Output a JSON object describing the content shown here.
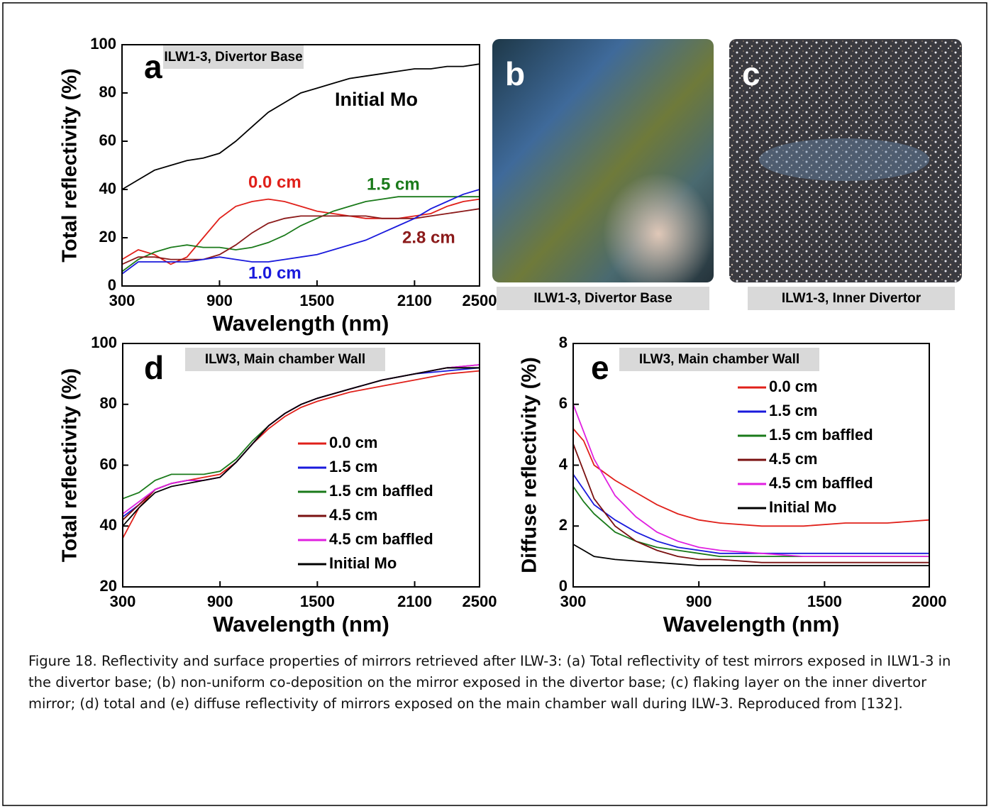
{
  "chart_data": [
    {
      "type": "line",
      "panel": "a",
      "tag": "ILW1-3, Divertor Base",
      "xlabel": "Wavelength (nm)",
      "ylabel": "Total reflectivity (%)",
      "xlim": [
        300,
        2500
      ],
      "xticks": [
        300,
        900,
        1500,
        2100,
        2500
      ],
      "ylim": [
        0,
        100
      ],
      "yticks": [
        0,
        20,
        40,
        60,
        80,
        100
      ],
      "legend": false,
      "x": [
        300,
        400,
        500,
        600,
        700,
        800,
        900,
        1000,
        1100,
        1200,
        1300,
        1400,
        1500,
        1600,
        1700,
        1800,
        1900,
        2000,
        2100,
        2200,
        2300,
        2400,
        2500
      ],
      "series": [
        {
          "name": "Initial Mo",
          "color": "#000000",
          "values": [
            40,
            44,
            48,
            50,
            52,
            53,
            55,
            60,
            66,
            72,
            76,
            80,
            82,
            84,
            86,
            87,
            88,
            89,
            90,
            90,
            91,
            91,
            92
          ]
        },
        {
          "name": "0.0 cm",
          "color": "#e0201a",
          "values": [
            11,
            15,
            13,
            9,
            12,
            20,
            28,
            33,
            35,
            36,
            35,
            33,
            31,
            30,
            29,
            28,
            28,
            28,
            29,
            30,
            33,
            35,
            36
          ]
        },
        {
          "name": "1.5 cm",
          "color": "#1a7a1a",
          "values": [
            6,
            11,
            14,
            16,
            17,
            16,
            16,
            15,
            16,
            18,
            21,
            25,
            28,
            31,
            33,
            35,
            36,
            37,
            37,
            37,
            37,
            37,
            37
          ]
        },
        {
          "name": "2.8 cm",
          "color": "#8b1a1a",
          "values": [
            9,
            12,
            12,
            11,
            11,
            11,
            13,
            17,
            22,
            26,
            28,
            29,
            29,
            29,
            29,
            29,
            28,
            28,
            28,
            29,
            30,
            31,
            32
          ]
        },
        {
          "name": "1.0 cm",
          "color": "#1a1adc",
          "values": [
            5,
            10,
            10,
            10,
            10,
            11,
            12,
            11,
            10,
            10,
            11,
            12,
            13,
            15,
            17,
            19,
            22,
            25,
            28,
            32,
            35,
            38,
            40
          ]
        }
      ]
    },
    {
      "type": "line",
      "panel": "d",
      "tag": "ILW3, Main chamber Wall",
      "xlabel": "Wavelength (nm)",
      "ylabel": "Total reflectivity (%)",
      "xlim": [
        300,
        2500
      ],
      "xticks": [
        300,
        900,
        1500,
        2100,
        2500
      ],
      "ylim": [
        20,
        100
      ],
      "yticks": [
        20,
        40,
        60,
        80,
        100
      ],
      "legend": true,
      "x": [
        300,
        400,
        500,
        600,
        700,
        800,
        900,
        1000,
        1100,
        1200,
        1300,
        1400,
        1500,
        1700,
        1900,
        2100,
        2300,
        2500
      ],
      "series": [
        {
          "name": "0.0 cm",
          "color": "#e0201a",
          "values": [
            36,
            46,
            52,
            54,
            55,
            56,
            57,
            61,
            67,
            72,
            76,
            79,
            81,
            84,
            86,
            88,
            90,
            91
          ]
        },
        {
          "name": "1.5 cm",
          "color": "#1a1adc",
          "values": [
            43,
            47,
            52,
            54,
            55,
            55,
            56,
            61,
            67,
            73,
            77,
            80,
            82,
            85,
            88,
            90,
            91,
            92
          ]
        },
        {
          "name": "1.5 cm baffled",
          "color": "#1a7a1a",
          "values": [
            49,
            51,
            55,
            57,
            57,
            57,
            58,
            62,
            68,
            73,
            77,
            80,
            82,
            85,
            88,
            90,
            92,
            92
          ]
        },
        {
          "name": "4.5 cm",
          "color": "#7a1010",
          "values": [
            42,
            47,
            52,
            54,
            55,
            55,
            56,
            61,
            67,
            73,
            77,
            80,
            82,
            85,
            88,
            90,
            92,
            93
          ]
        },
        {
          "name": "4.5 cm baffled",
          "color": "#e020e0",
          "values": [
            44,
            48,
            52,
            54,
            55,
            55,
            56,
            61,
            67,
            73,
            77,
            80,
            82,
            85,
            88,
            90,
            92,
            93
          ]
        },
        {
          "name": "Initial Mo",
          "color": "#000000",
          "values": [
            40,
            46,
            51,
            53,
            54,
            55,
            56,
            61,
            67,
            73,
            77,
            80,
            82,
            85,
            88,
            90,
            92,
            92
          ]
        }
      ]
    },
    {
      "type": "line",
      "panel": "e",
      "tag": "ILW3, Main chamber Wall",
      "xlabel": "Wavelength (nm)",
      "ylabel": "Diffuse reflectivity (%)",
      "xlim": [
        300,
        2000
      ],
      "xticks": [
        300,
        900,
        1500,
        2000
      ],
      "ylim": [
        0,
        8
      ],
      "yticks": [
        0,
        2,
        4,
        6,
        8
      ],
      "legend": true,
      "x": [
        300,
        350,
        400,
        500,
        600,
        700,
        800,
        900,
        1000,
        1200,
        1400,
        1600,
        1800,
        2000
      ],
      "series": [
        {
          "name": "0.0 cm",
          "color": "#e0201a",
          "values": [
            5.2,
            4.8,
            4.0,
            3.5,
            3.1,
            2.7,
            2.4,
            2.2,
            2.1,
            2.0,
            2.0,
            2.1,
            2.1,
            2.2
          ]
        },
        {
          "name": "1.5 cm",
          "color": "#1a1adc",
          "values": [
            3.7,
            3.2,
            2.7,
            2.2,
            1.8,
            1.5,
            1.3,
            1.2,
            1.1,
            1.1,
            1.1,
            1.1,
            1.1,
            1.1
          ]
        },
        {
          "name": "1.5 cm baffled",
          "color": "#1a7a1a",
          "values": [
            3.3,
            2.8,
            2.4,
            1.8,
            1.5,
            1.3,
            1.2,
            1.1,
            1.0,
            1.0,
            1.0,
            1.0,
            1.0,
            1.0
          ]
        },
        {
          "name": "4.5 cm",
          "color": "#7a1010",
          "values": [
            4.7,
            3.8,
            2.9,
            2.0,
            1.5,
            1.2,
            1.0,
            0.9,
            0.9,
            0.8,
            0.8,
            0.8,
            0.8,
            0.8
          ]
        },
        {
          "name": "4.5 cm baffled",
          "color": "#e020e0",
          "values": [
            6.0,
            5.1,
            4.2,
            3.0,
            2.3,
            1.8,
            1.5,
            1.3,
            1.2,
            1.1,
            1.0,
            1.0,
            1.0,
            1.0
          ]
        },
        {
          "name": "Initial Mo",
          "color": "#000000",
          "values": [
            1.4,
            1.2,
            1.0,
            0.9,
            0.85,
            0.8,
            0.75,
            0.7,
            0.7,
            0.7,
            0.7,
            0.7,
            0.7,
            0.7
          ]
        }
      ]
    }
  ],
  "photos": [
    {
      "panel": "b",
      "label": "ILW1-3, Divertor Base"
    },
    {
      "panel": "c",
      "label": "ILW1-3, Inner Divertor"
    }
  ],
  "caption": "Figure 18. Reflectivity and surface properties of mirrors retrieved after ILW-3: (a) Total reflectivity of test mirrors exposed in ILW1-3 in the divertor base; (b) non-uniform co-deposition on the mirror exposed in the divertor base; (c) flaking layer on the inner divertor mirror; (d) total and (e) diffuse reflectivity of mirrors exposed on the main chamber wall during ILW-3. Reproduced from [132]."
}
